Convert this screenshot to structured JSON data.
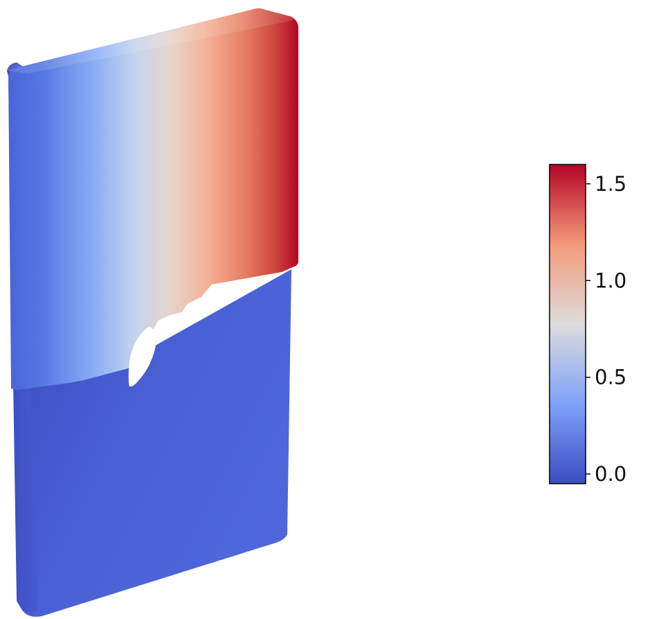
{
  "plot": {
    "colormap": "coolwarm",
    "colorbar": {
      "min": -0.05,
      "max": 1.6,
      "ticks": [
        {
          "value": 1.5,
          "label": "1.5"
        },
        {
          "value": 1.0,
          "label": "1.0"
        },
        {
          "value": 0.5,
          "label": "0.5"
        },
        {
          "value": 0.0,
          "label": "0.0"
        }
      ],
      "stops": [
        {
          "offset": 0.0,
          "color": "#3b4cc0"
        },
        {
          "offset": 0.25,
          "color": "#7ea1fa"
        },
        {
          "offset": 0.5,
          "color": "#dddcdc"
        },
        {
          "offset": 0.75,
          "color": "#f49a7b"
        },
        {
          "offset": 1.0,
          "color": "#b40426"
        }
      ]
    },
    "colors": {
      "background": "#ffffff",
      "body_blue": "#4a63d8",
      "body_blue_dark": "#3b4cc0",
      "hole": "#ffffff"
    }
  }
}
